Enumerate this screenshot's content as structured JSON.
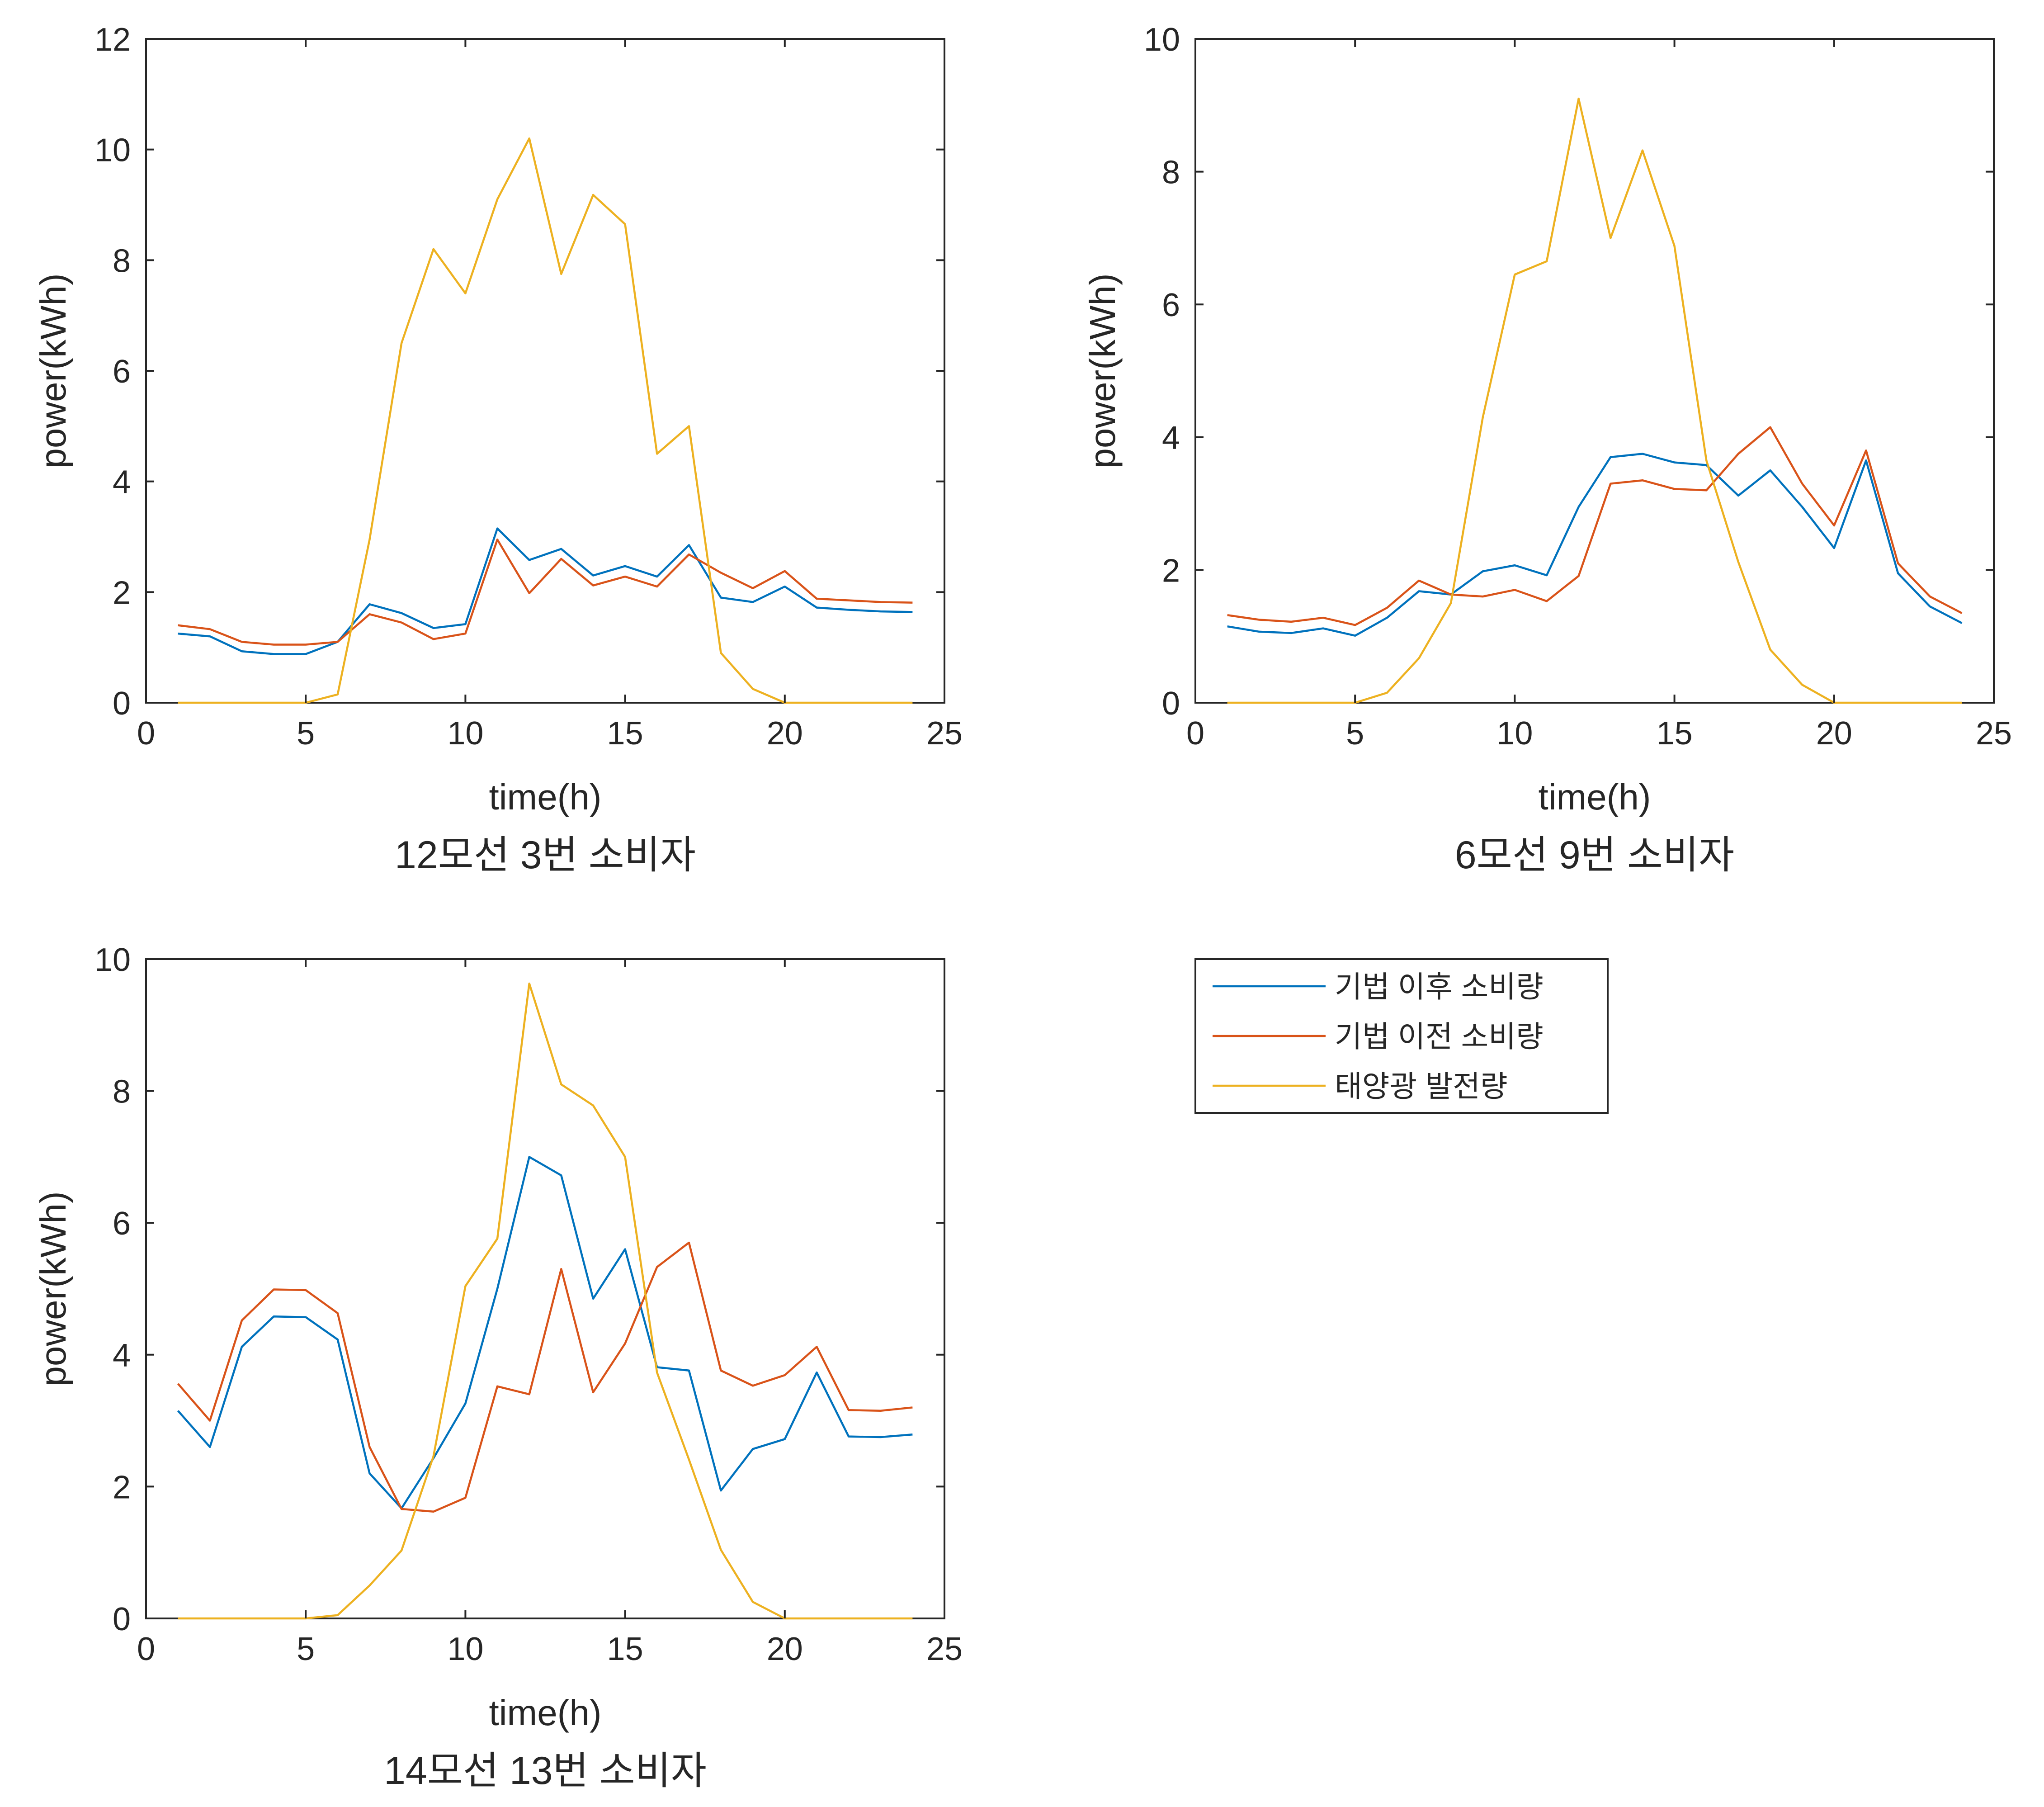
{
  "legend": {
    "entries": [
      {
        "label": "기법 이후 소비량",
        "color": "#0072BD"
      },
      {
        "label": "기법 이전 소비량",
        "color": "#D95319"
      },
      {
        "label": "태양광 발전량",
        "color": "#EDB120"
      }
    ]
  },
  "chart_data": [
    {
      "type": "line",
      "title": "12모선 3번 소비자",
      "xlabel": "time(h)",
      "ylabel": "power(kWh)",
      "xlim": [
        0,
        25
      ],
      "ylim": [
        0,
        12
      ],
      "xticks": [
        0,
        5,
        10,
        15,
        20,
        25
      ],
      "yticks": [
        0,
        2,
        4,
        6,
        8,
        10,
        12
      ],
      "grid": false,
      "x": [
        1,
        2,
        3,
        4,
        5,
        6,
        7,
        8,
        9,
        10,
        11,
        12,
        13,
        14,
        15,
        16,
        17,
        18,
        19,
        20,
        21,
        22,
        23,
        24
      ],
      "series": [
        {
          "name": "기법 이후 소비량",
          "color": "#0072BD",
          "values": [
            1.25,
            1.2,
            0.93,
            0.88,
            0.88,
            1.1,
            1.78,
            1.62,
            1.35,
            1.42,
            3.15,
            2.58,
            2.78,
            2.3,
            2.47,
            2.28,
            2.85,
            1.9,
            1.82,
            2.1,
            1.72,
            1.68,
            1.65,
            1.64
          ]
        },
        {
          "name": "기법 이전 소비량",
          "color": "#D95319",
          "values": [
            1.4,
            1.33,
            1.1,
            1.05,
            1.05,
            1.1,
            1.6,
            1.45,
            1.15,
            1.25,
            2.95,
            1.98,
            2.6,
            2.12,
            2.28,
            2.1,
            2.68,
            2.35,
            2.07,
            2.38,
            1.88,
            1.85,
            1.82,
            1.81
          ]
        },
        {
          "name": "태양광 발전량",
          "color": "#EDB120",
          "values": [
            0,
            0,
            0,
            0,
            0,
            0.15,
            2.95,
            6.5,
            8.2,
            7.4,
            9.1,
            10.2,
            7.75,
            9.18,
            8.65,
            4.5,
            5.0,
            0.9,
            0.25,
            0,
            0,
            0,
            0,
            0
          ]
        }
      ]
    },
    {
      "type": "line",
      "title": "6모선 9번 소비자",
      "xlabel": "time(h)",
      "ylabel": "power(kWh)",
      "xlim": [
        0,
        25
      ],
      "ylim": [
        0,
        10
      ],
      "xticks": [
        0,
        5,
        10,
        15,
        20,
        25
      ],
      "yticks": [
        0,
        2,
        4,
        6,
        8,
        10
      ],
      "grid": false,
      "x": [
        1,
        2,
        3,
        4,
        5,
        6,
        7,
        8,
        9,
        10,
        11,
        12,
        13,
        14,
        15,
        16,
        17,
        18,
        19,
        20,
        21,
        22,
        23,
        24
      ],
      "series": [
        {
          "name": "기법 이후 소비량",
          "color": "#0072BD",
          "values": [
            1.15,
            1.07,
            1.05,
            1.12,
            1.01,
            1.28,
            1.68,
            1.63,
            1.98,
            2.07,
            1.92,
            2.95,
            3.7,
            3.75,
            3.62,
            3.58,
            3.12,
            3.5,
            2.95,
            2.33,
            3.65,
            1.95,
            1.45,
            1.2
          ]
        },
        {
          "name": "기법 이전 소비량",
          "color": "#D95319",
          "values": [
            1.32,
            1.25,
            1.22,
            1.28,
            1.17,
            1.43,
            1.84,
            1.63,
            1.6,
            1.7,
            1.53,
            1.91,
            3.3,
            3.35,
            3.22,
            3.2,
            3.75,
            4.15,
            3.3,
            2.67,
            3.8,
            2.1,
            1.6,
            1.35
          ]
        },
        {
          "name": "태양광 발전량",
          "color": "#EDB120",
          "values": [
            0,
            0,
            0,
            0,
            0,
            0.15,
            0.67,
            1.5,
            4.3,
            6.45,
            6.65,
            9.1,
            7.0,
            8.32,
            6.88,
            3.65,
            2.12,
            0.8,
            0.27,
            0,
            0,
            0,
            0,
            0
          ]
        }
      ]
    },
    {
      "type": "line",
      "title": "14모선 13번 소비자",
      "xlabel": "time(h)",
      "ylabel": "power(kWh)",
      "xlim": [
        0,
        25
      ],
      "ylim": [
        0,
        10
      ],
      "xticks": [
        0,
        5,
        10,
        15,
        20,
        25
      ],
      "yticks": [
        0,
        2,
        4,
        6,
        8,
        10
      ],
      "grid": false,
      "x": [
        1,
        2,
        3,
        4,
        5,
        6,
        7,
        8,
        9,
        10,
        11,
        12,
        13,
        14,
        15,
        16,
        17,
        18,
        19,
        20,
        21,
        22,
        23,
        24
      ],
      "series": [
        {
          "name": "기법 이후 소비량",
          "color": "#0072BD",
          "values": [
            3.15,
            2.6,
            4.12,
            4.58,
            4.57,
            4.23,
            2.2,
            1.67,
            2.43,
            3.26,
            5.0,
            7.0,
            6.72,
            4.85,
            5.6,
            3.81,
            3.76,
            1.94,
            2.57,
            2.72,
            3.73,
            2.76,
            2.75,
            2.79
          ]
        },
        {
          "name": "기법 이전 소비량",
          "color": "#D95319",
          "values": [
            3.56,
            3.0,
            4.52,
            4.99,
            4.98,
            4.63,
            2.6,
            1.66,
            1.62,
            1.83,
            3.52,
            3.4,
            5.3,
            3.43,
            4.17,
            5.33,
            5.7,
            3.76,
            3.53,
            3.69,
            4.12,
            3.16,
            3.15,
            3.2
          ]
        },
        {
          "name": "태양광 발전량",
          "color": "#EDB120",
          "values": [
            0,
            0,
            0,
            0,
            0,
            0.05,
            0.5,
            1.03,
            2.46,
            5.04,
            5.76,
            9.63,
            8.1,
            7.78,
            7.0,
            3.73,
            2.41,
            1.04,
            0.25,
            0,
            0,
            0,
            0,
            0
          ]
        }
      ]
    }
  ]
}
